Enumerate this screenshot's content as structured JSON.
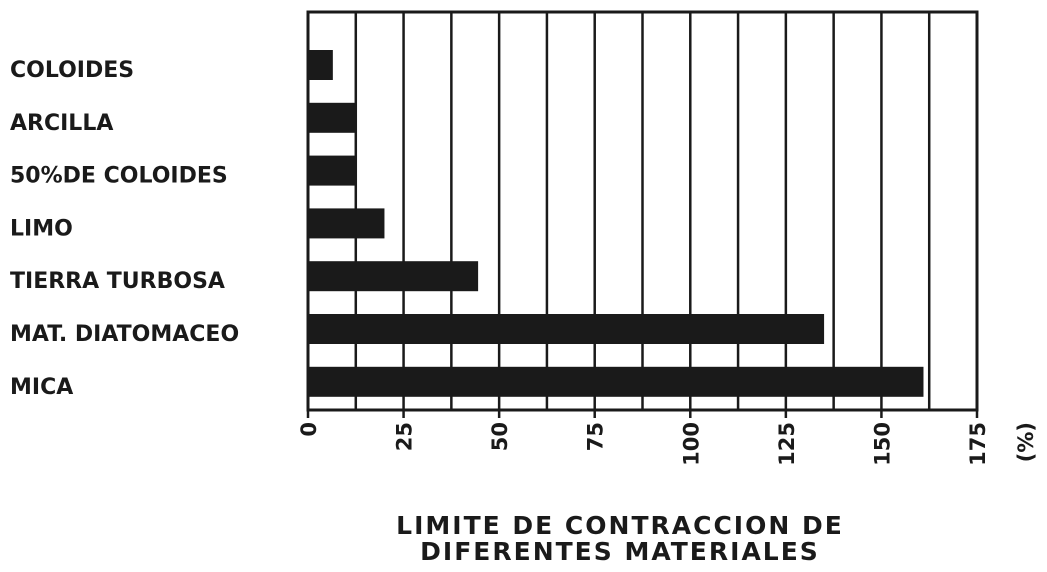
{
  "chart_data": {
    "type": "bar",
    "orientation": "horizontal",
    "title": [
      "LIMITE DE CONTRACCION DE",
      "DIFERENTES MATERIALES"
    ],
    "x_label": "(%)",
    "categories": [
      "COLOIDES",
      "ARCILLA",
      "50%DE COLOIDES",
      "LIMO",
      "TIERRA TURBOSA",
      "MAT. DIATOMACEO",
      "MICA"
    ],
    "values": [
      6.5,
      12.5,
      12.5,
      20,
      44.5,
      135,
      161
    ],
    "color": "#1a1a1a",
    "xlim": [
      0,
      175
    ],
    "xticks": [
      0,
      25,
      50,
      75,
      100,
      125,
      150,
      175
    ],
    "xgrid": [
      0,
      12.5,
      25,
      37.5,
      50,
      62.5,
      75,
      87.5,
      100,
      112.5,
      125,
      137.5,
      150,
      162.5,
      175
    ],
    "grid": true
  }
}
